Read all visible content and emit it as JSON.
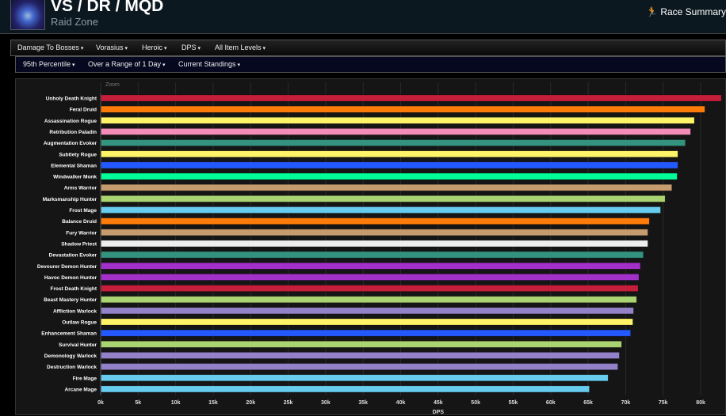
{
  "header": {
    "title": "VS / DR / MQD",
    "subtitle": "Raid Zone",
    "race_summary": "Race Summary",
    "race_icon": "running-person-icon"
  },
  "filters": {
    "row1": [
      "Damage To Bosses",
      "Vorasius",
      "Heroic",
      "DPS",
      "All Item Levels"
    ],
    "row2": [
      "95th Percentile",
      "Over a Range of 1 Day",
      "Current Standings"
    ]
  },
  "chart_data": {
    "type": "bar",
    "orientation": "horizontal",
    "zoom_label": "Zoom",
    "xlabel": "DPS",
    "xlim": [
      0,
      84000
    ],
    "xticks": [
      "0k",
      "5k",
      "10k",
      "15k",
      "20k",
      "25k",
      "30k",
      "35k",
      "40k",
      "45k",
      "50k",
      "55k",
      "60k",
      "65k",
      "70k",
      "75k",
      "80k"
    ],
    "grid": true,
    "categories": [
      "Unholy Death Knight",
      "Feral Druid",
      "Assassination Rogue",
      "Retribution Paladin",
      "Augmentation Evoker",
      "Subtlety Rogue",
      "Elemental Shaman",
      "Windwalker Monk",
      "Arms Warrior",
      "Marksmanship Hunter",
      "Frost Mage",
      "Balance Druid",
      "Fury Warrior",
      "Shadow Priest",
      "Devastation Evoker",
      "Devourer Demon Hunter",
      "Havoc Demon Hunter",
      "Frost Death Knight",
      "Beast Mastery Hunter",
      "Affliction Warlock",
      "Outlaw Rogue",
      "Enhancement Shaman",
      "Survival Hunter",
      "Demonology Warlock",
      "Destruction Warlock",
      "Fire Mage",
      "Arcane Mage"
    ],
    "values": [
      82700,
      80500,
      79100,
      78600,
      77900,
      76900,
      76900,
      76800,
      76100,
      75200,
      74600,
      73100,
      72900,
      72900,
      72300,
      71900,
      71700,
      71600,
      71400,
      71000,
      70900,
      70600,
      69400,
      69100,
      68900,
      67600,
      65100
    ],
    "colors": [
      "#C41E3A",
      "#FF7C0A",
      "#FFF468",
      "#F48CBA",
      "#33937F",
      "#FFF468",
      "#2459FF",
      "#00FF98",
      "#C69B6D",
      "#AAD372",
      "#68CCEF",
      "#FF7C0A",
      "#C69B6D",
      "#EEEEEE",
      "#33937F",
      "#A330C9",
      "#A330C9",
      "#C41E3A",
      "#AAD372",
      "#9482C9",
      "#FFF468",
      "#2459FF",
      "#AAD372",
      "#9482C9",
      "#9482C9",
      "#68CCEF",
      "#68CCEF"
    ]
  }
}
